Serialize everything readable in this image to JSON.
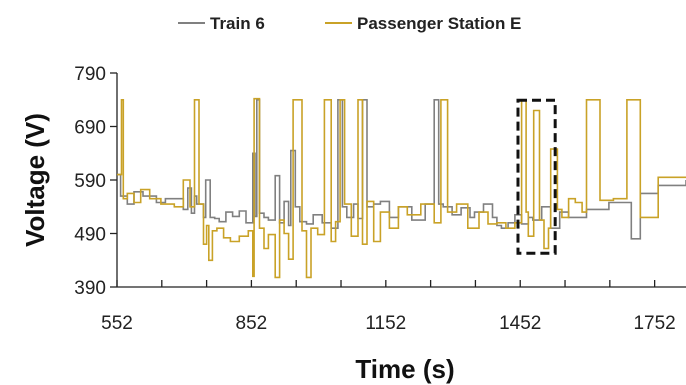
{
  "chart_data": {
    "type": "line",
    "xlabel": "Time (s)",
    "ylabel": "Voltage (V)",
    "xlim": [
      552,
      1822
    ],
    "ylim": [
      390,
      790
    ],
    "x_ticks": [
      552,
      852,
      1152,
      1452,
      1752
    ],
    "y_ticks": [
      390,
      490,
      590,
      690,
      790
    ],
    "legend_position": "top-center",
    "grid": false,
    "highlight_box": {
      "x": [
        1447,
        1530
      ],
      "y": [
        453,
        739
      ]
    },
    "series": [
      {
        "name": "Train 6",
        "color": "#808080",
        "x": [
          552,
          560,
          575,
          590,
          610,
          640,
          660,
          700,
          710,
          718,
          725,
          730,
          745,
          750,
          760,
          770,
          780,
          795,
          810,
          825,
          840,
          855,
          860,
          864,
          870,
          880,
          890,
          905,
          915,
          925,
          935,
          940,
          950,
          960,
          975,
          990,
          1010,
          1030,
          1045,
          1055,
          1065,
          1080,
          1090,
          1100,
          1110,
          1125,
          1140,
          1160,
          1180,
          1210,
          1240,
          1260,
          1270,
          1280,
          1300,
          1320,
          1340,
          1350,
          1370,
          1390,
          1400,
          1410,
          1425,
          1440,
          1455,
          1470,
          1480,
          1500,
          1520,
          1540,
          1560,
          1600,
          1650,
          1700,
          1720,
          1760,
          1822
        ],
        "y": [
          600,
          560,
          545,
          568,
          560,
          548,
          555,
          535,
          575,
          528,
          560,
          545,
          520,
          590,
          520,
          518,
          512,
          530,
          522,
          532,
          510,
          640,
          522,
          740,
          528,
          520,
          515,
          598,
          510,
          550,
          505,
          645,
          540,
          512,
          508,
          525,
          510,
          500,
          740,
          540,
          520,
          545,
          518,
          740,
          540,
          545,
          550,
          520,
          540,
          515,
          545,
          740,
          545,
          540,
          525,
          538,
          520,
          530,
          545,
          520,
          505,
          500,
          510,
          525,
          508,
          520,
          515,
          540,
          500,
          530,
          520,
          535,
          548,
          480,
          565,
          580,
          590
        ]
      },
      {
        "name": "Passenger Station E",
        "color": "#C9A227",
        "x": [
          552,
          562,
          566,
          575,
          590,
          605,
          625,
          650,
          680,
          700,
          715,
          725,
          735,
          745,
          752,
          757,
          765,
          775,
          790,
          805,
          825,
          845,
          855,
          858,
          870,
          880,
          890,
          905,
          915,
          925,
          935,
          945,
          965,
          975,
          985,
          1000,
          1015,
          1030,
          1040,
          1050,
          1060,
          1075,
          1090,
          1100,
          1110,
          1125,
          1140,
          1160,
          1180,
          1200,
          1230,
          1260,
          1275,
          1290,
          1310,
          1335,
          1360,
          1380,
          1400,
          1420,
          1440,
          1455,
          1465,
          1470,
          1482,
          1495,
          1505,
          1515,
          1520,
          1535,
          1545,
          1560,
          1575,
          1590,
          1600,
          1630,
          1660,
          1690,
          1720,
          1760,
          1822
        ],
        "y": [
          600,
          740,
          555,
          565,
          548,
          572,
          555,
          545,
          540,
          590,
          540,
          740,
          545,
          470,
          505,
          440,
          495,
          500,
          482,
          475,
          485,
          495,
          410,
          742,
          500,
          462,
          488,
          408,
          515,
          490,
          442,
          740,
          495,
          408,
          500,
          488,
          740,
          475,
          512,
          740,
          545,
          485,
          740,
          470,
          550,
          475,
          530,
          500,
          540,
          525,
          545,
          510,
          740,
          530,
          545,
          500,
          530,
          508,
          510,
          500,
          510,
          740,
          530,
          485,
          720,
          515,
          462,
          500,
          648,
          535,
          520,
          555,
          548,
          530,
          740,
          552,
          555,
          740,
          520,
          595,
          595
        ]
      }
    ]
  }
}
